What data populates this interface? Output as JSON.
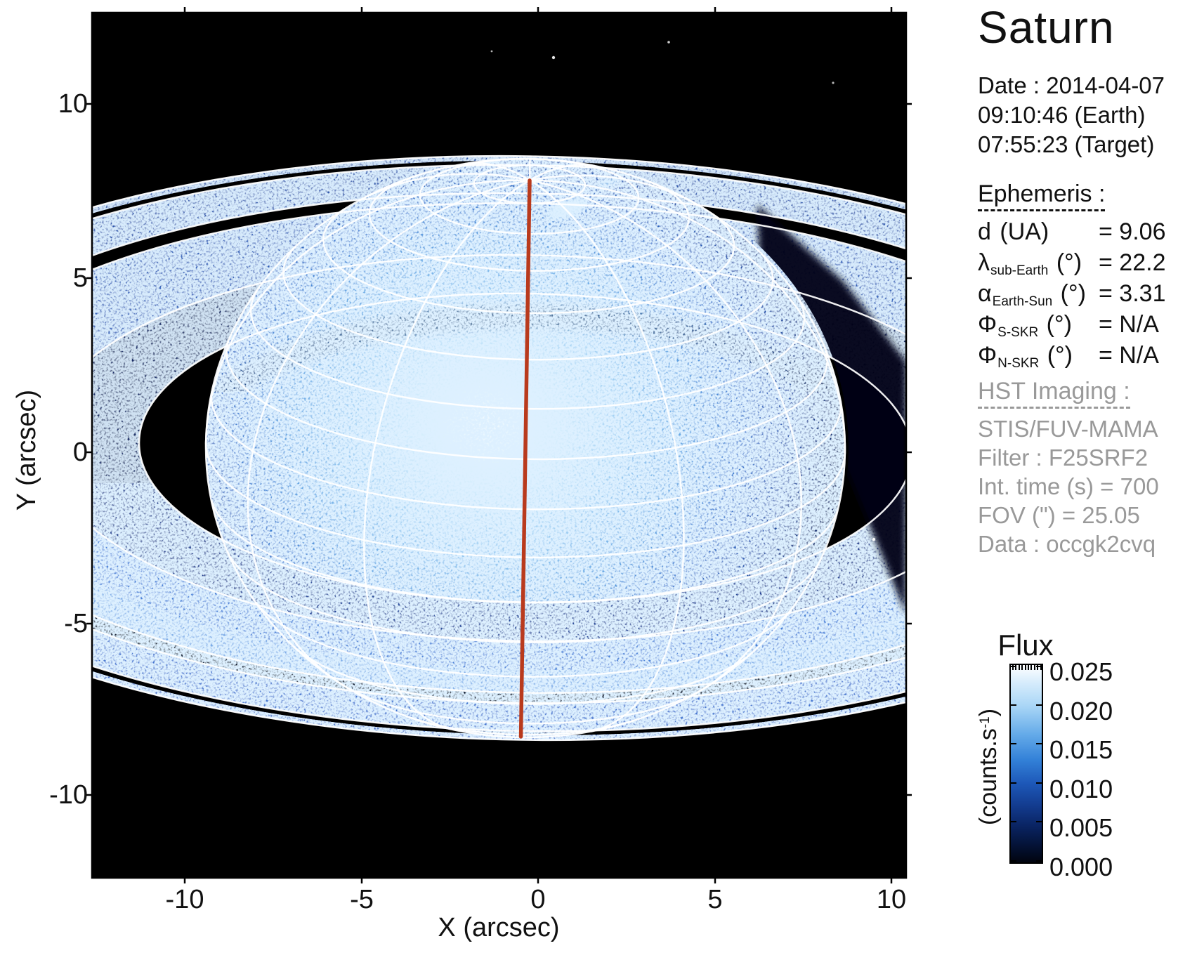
{
  "title": "Saturn",
  "date_block": {
    "line1": "Date : 2014-04-07",
    "line2": "09:10:46 (Earth)",
    "line3": "07:55:23 (Target)"
  },
  "ephemeris": {
    "header": "Ephemeris :",
    "rows": [
      {
        "sym": "d",
        "sub": "",
        "unit": " (UA)",
        "value": "= 9.06"
      },
      {
        "sym": "λ",
        "sub": "sub-Earth",
        "unit": " (°)",
        "value": "= 22.2"
      },
      {
        "sym": "α",
        "sub": "Earth-Sun",
        "unit": " (°)",
        "value": "= 3.31"
      },
      {
        "sym": "Φ",
        "sub": "S-SKR",
        "unit": " (°)",
        "value": "= N/A"
      },
      {
        "sym": "Φ",
        "sub": "N-SKR",
        "unit": " (°)",
        "value": "= N/A"
      }
    ]
  },
  "hst": {
    "header": "HST Imaging :",
    "lines": [
      "STIS/FUV-MAMA",
      "Filter : F25SRF2",
      "Int. time (s) = 700",
      "FOV (\") = 25.05",
      "Data : occgk2cvq"
    ]
  },
  "colorbar": {
    "title": "Flux",
    "unit_prefix": "(counts.s",
    "unit_sup": "-1",
    "unit_suffix": ")",
    "ticks": [
      "0.025",
      "0.020",
      "0.015",
      "0.010",
      "0.005",
      "0.000"
    ]
  },
  "axes": {
    "x_label": "X (arcsec)",
    "y_label": "Y (arcsec)",
    "x_ticks": [
      "-10",
      "-5",
      "0",
      "5",
      "10"
    ],
    "y_ticks": [
      "10",
      "5",
      "0",
      "-5",
      "-10"
    ]
  },
  "chart_data": {
    "type": "heatmap",
    "title": "Saturn",
    "xlabel": "X (arcsec)",
    "ylabel": "Y (arcsec)",
    "xlim": [
      -12.6,
      10.4
    ],
    "ylim": [
      -12.4,
      12.7
    ],
    "x_ticks": [
      -10,
      -5,
      0,
      5,
      10
    ],
    "y_ticks": [
      10,
      5,
      0,
      -5,
      -10
    ],
    "colorbar": {
      "label": "Flux (counts.s-1)",
      "range": [
        0.0,
        0.025
      ],
      "ticks": [
        0.025,
        0.02,
        0.015,
        0.01,
        0.005,
        0.0
      ]
    },
    "observation": {
      "date": "2014-04-07",
      "time_earth": "09:10:46",
      "time_target": "07:55:23",
      "d_UA": 9.06,
      "lambda_subEarth_deg": 22.2,
      "alpha_EarthSun_deg": 3.31,
      "phi_S_SKR_deg": "N/A",
      "phi_N_SKR_deg": "N/A",
      "instrument": "STIS/FUV-MAMA",
      "filter": "F25SRF2",
      "int_time_s": 700,
      "fov_arcsec": 25.05,
      "dataset": "occgk2cvq"
    },
    "description": "Far-UV HST image of Saturn (blue flux map) with planetographic lat/lon grid overlay, ring-edge model ellipses, red central meridian, rings nearly edge-on with planet shadow on right ansa"
  }
}
